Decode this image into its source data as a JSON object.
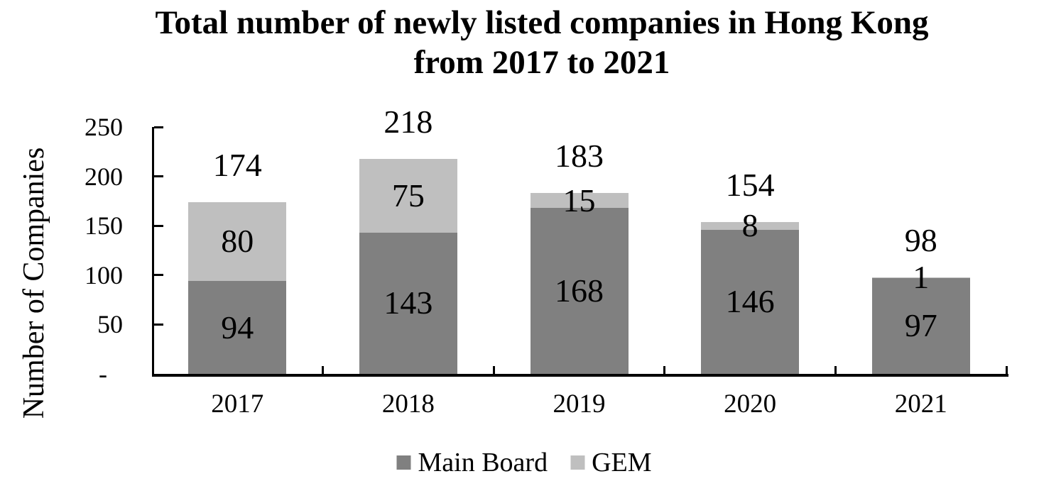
{
  "chart_data": {
    "type": "bar",
    "stacked": true,
    "title": "Total number of newly listed companies in Hong Kong",
    "title_line2": "from 2017 to 2021",
    "ylabel": "Number of Companies",
    "categories": [
      "2017",
      "2018",
      "2019",
      "2020",
      "2021"
    ],
    "series": [
      {
        "name": "Main Board",
        "color": "#808080",
        "values": [
          94,
          143,
          168,
          146,
          97
        ]
      },
      {
        "name": "GEM",
        "color": "#bfbfbf",
        "values": [
          80,
          75,
          15,
          8,
          1
        ]
      }
    ],
    "totals": [
      174,
      218,
      183,
      154,
      98
    ],
    "ylim": [
      0,
      250
    ],
    "ytick_step": 50,
    "ytick_labels": [
      "-",
      "50",
      "100",
      "150",
      "200",
      "250"
    ],
    "grid": false,
    "legend_position": "bottom",
    "colors": {
      "axis": "#000000",
      "text": "#000000",
      "background": "#ffffff"
    }
  }
}
